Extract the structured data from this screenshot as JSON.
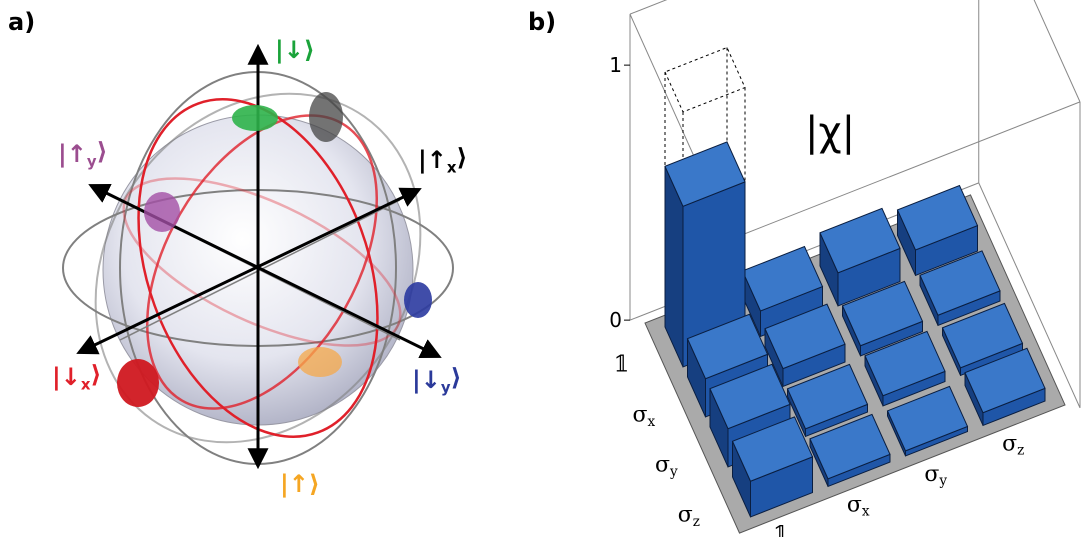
{
  "panel_a": {
    "label": "a)",
    "states": [
      "|↓⟩",
      "|↑y⟩",
      "|↑x⟩",
      "|↓x⟩",
      "|↓y⟩",
      "|↑⟩"
    ]
  },
  "chart_data": {
    "type": "bar3d",
    "panel_label": "b)",
    "title": "|χ|",
    "rows": [
      "𝟙",
      "σx",
      "σy",
      "σz"
    ],
    "columns": [
      "𝟙",
      "σx",
      "σy",
      "σz"
    ],
    "values": [
      [
        0.63,
        0.1,
        0.13,
        0.1
      ],
      [
        0.15,
        0.07,
        0.04,
        0.04
      ],
      [
        0.15,
        0.03,
        0.04,
        0.03
      ],
      [
        0.14,
        0.03,
        0.02,
        0.05
      ]
    ],
    "ideal_values": [
      [
        1,
        null,
        null,
        null
      ],
      [
        null,
        null,
        null,
        null
      ],
      [
        null,
        null,
        null,
        null
      ],
      [
        null,
        null,
        null,
        null
      ]
    ],
    "zlim": [
      0,
      1
    ],
    "zticks": [
      0,
      1
    ],
    "color": "#3a78c9"
  }
}
